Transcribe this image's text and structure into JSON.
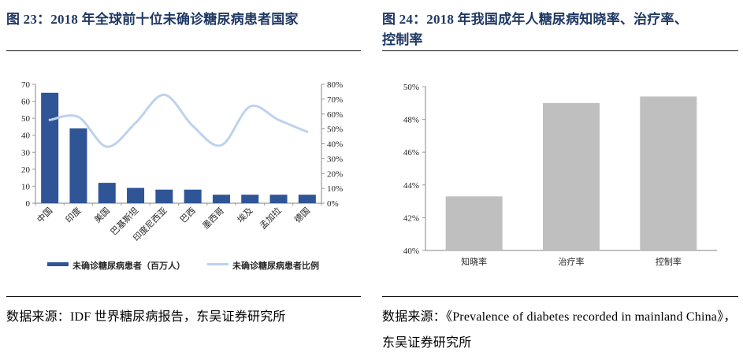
{
  "left_panel": {
    "title": "图 23：2018 年全球前十位未确诊糖尿病患者国家",
    "source": "数据来源：IDF 世界糖尿病报告，东吴证券研究所"
  },
  "right_panel": {
    "title_lines": [
      "图 24：2018 年我国成年人糖尿病知晓率、治疗率、",
      "控制率"
    ],
    "source": "数据来源：《Prevalence of diabetes recorded in mainland China》，东吴证券研究所"
  },
  "colors": {
    "title_navy": "#1f3864",
    "bar_blue": "#2f5597",
    "line_light_blue": "#bdd2ec",
    "bar_gray": "#bfbfbf",
    "axis_gray": "#9a9a9a",
    "tick_text": "#262626",
    "divider_black": "#121212"
  },
  "chart_data": [
    {
      "type": "bar",
      "subtype": "bar+line-combo",
      "title": "2018 年全球前十位未确诊糖尿病患者国家",
      "categories": [
        "中国",
        "印度",
        "美国",
        "巴基斯坦",
        "印度尼西亚",
        "巴西",
        "墨西哥",
        "埃及",
        "孟加拉",
        "德国"
      ],
      "series": [
        {
          "name": "未确诊糖尿病患者（百万人）",
          "type": "bar",
          "axis": "left",
          "color": "#2f5597",
          "values": [
            65,
            44,
            12,
            9,
            8,
            8,
            5,
            5,
            5,
            5
          ]
        },
        {
          "name": "未确诊糖尿病患者比例",
          "type": "line",
          "axis": "right",
          "color": "#bdd2ec",
          "values": [
            56,
            58,
            38,
            54,
            73,
            52,
            39,
            65,
            56,
            48
          ]
        }
      ],
      "left_axis": {
        "min": 0,
        "max": 70,
        "step": 10,
        "suffix": ""
      },
      "right_axis": {
        "min": 0,
        "max": 80,
        "step": 10,
        "suffix": "%"
      },
      "legend_position": "bottom",
      "grid": false,
      "x_labels_rotated_45": true
    },
    {
      "type": "bar",
      "title": "2018 年我国成年人糖尿病知晓率、治疗率、控制率",
      "categories": [
        "知晓率",
        "治疗率",
        "控制率"
      ],
      "values": [
        43.3,
        49.0,
        49.4
      ],
      "bar_color": "#bfbfbf",
      "y_axis": {
        "min": 40,
        "max": 50,
        "step": 2,
        "suffix": "%"
      },
      "legend_position": "none",
      "grid": false
    }
  ]
}
